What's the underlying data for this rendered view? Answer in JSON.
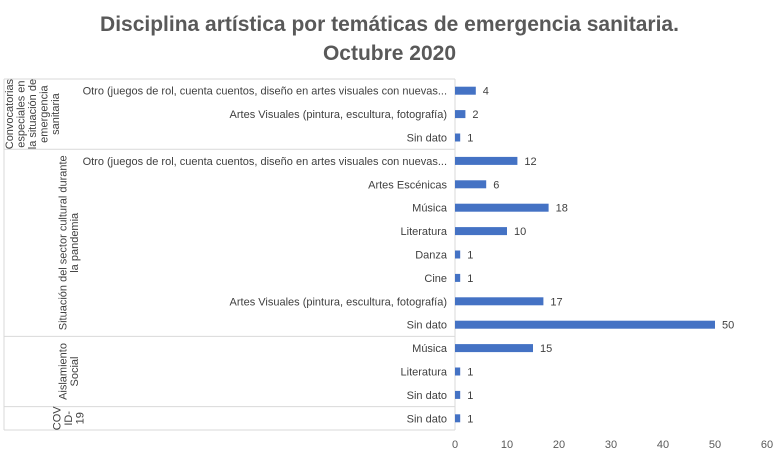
{
  "chart_data": {
    "type": "bar",
    "orientation": "horizontal",
    "title": [
      "Disciplina artística por temáticas de emergencia sanitaria.",
      "Octubre 2020"
    ],
    "xlabel": "",
    "ylabel": "",
    "xlim": [
      0,
      60
    ],
    "xticks": [
      0,
      10,
      20,
      30,
      40,
      50,
      60
    ],
    "grid": false,
    "legend": "none",
    "bar_color": "#4472C4",
    "groups": [
      {
        "name": "Convocatorias especiales en la situación de emergencia sanitaria",
        "label_lines": [
          "Convocatorias",
          "especiales en",
          "la situación de",
          "emergencia",
          "sanitaria"
        ],
        "categories": [
          "Otro (juegos de rol, cuenta cuentos, diseño en artes visuales con nuevas...",
          "Artes Visuales (pintura, escultura, fotografía)",
          "Sin dato"
        ],
        "values": [
          4,
          2,
          1
        ]
      },
      {
        "name": "Situación del sector cultural durante la pandemia",
        "label_lines": [
          "Situación del sector cultural durante",
          "la pandemia"
        ],
        "categories": [
          "Otro (juegos de rol, cuenta cuentos, diseño en artes visuales con nuevas...",
          "Artes Escénicas",
          "Música",
          "Literatura",
          "Danza",
          "Cine",
          "Artes Visuales (pintura, escultura, fotografía)",
          "Sin dato"
        ],
        "values": [
          12,
          6,
          18,
          10,
          1,
          1,
          17,
          50
        ]
      },
      {
        "name": "Aislamiento Social",
        "label_lines": [
          "Aislamiento",
          "Social"
        ],
        "categories": [
          "Música",
          "Literatura",
          "Sin dato"
        ],
        "values": [
          15,
          1,
          1
        ]
      },
      {
        "name": "COVID-19",
        "label_lines": [
          "COV",
          "ID-",
          "19"
        ],
        "categories": [
          "Sin dato"
        ],
        "values": [
          1
        ]
      }
    ]
  }
}
